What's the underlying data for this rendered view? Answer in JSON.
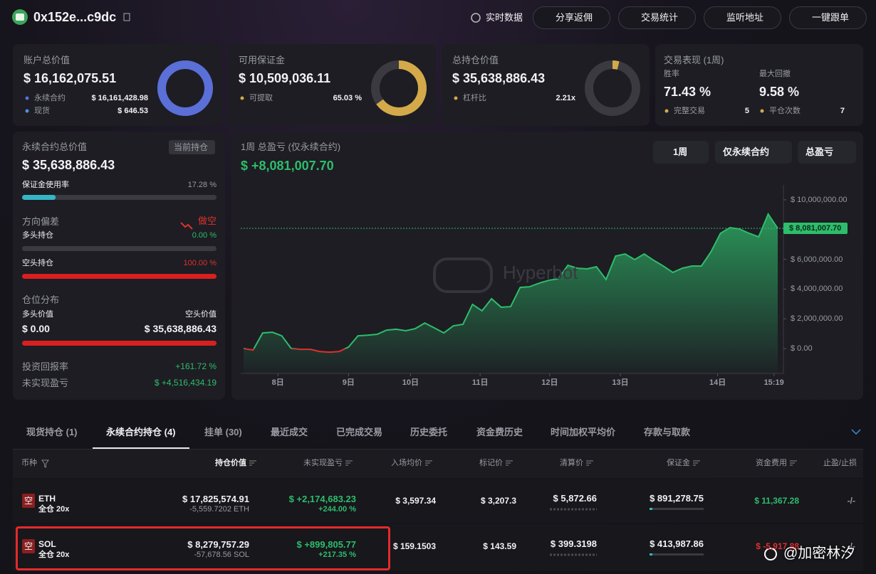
{
  "header": {
    "address": "0x152e...c9dc",
    "buttons": [
      "实时数据",
      "分享返佣",
      "交易统计",
      "监听地址",
      "一键跟单"
    ]
  },
  "cards": [
    {
      "title": "账户总价值",
      "value": "$ 16,162,075.51",
      "rows": [
        {
          "label": "永续合约",
          "value": 16161428.98,
          "value_label": "$ 16,161,428.98",
          "color": "#5b6fd8"
        },
        {
          "label": "现货",
          "value": 646.53,
          "value_label": "$ 646.53",
          "color": "#4d8fe0"
        }
      ]
    },
    {
      "title": "可用保证金",
      "value": "$ 10,509,036.11",
      "rows": [
        {
          "label": "可提取",
          "value": 65.03,
          "value_label": "65.03 %",
          "color": "#d4a94a"
        }
      ]
    },
    {
      "title": "总持仓价值",
      "value": "$ 35,638,886.43",
      "rows": [
        {
          "label": "杠杆比",
          "value": 2.21,
          "value_label": "2.21x",
          "color": "#d4a94a"
        }
      ],
      "donut_percent": 4
    }
  ],
  "performance": {
    "title": "交易表现 (1周)",
    "stats": [
      {
        "label": "胜率",
        "value": "71.43 %"
      },
      {
        "label": "最大回撤",
        "value": "9.58 %"
      }
    ],
    "counts": [
      {
        "label": "完整交易",
        "value": 5
      },
      {
        "label": "平仓次数",
        "value": 7
      }
    ]
  },
  "perp": {
    "title": "永续合约总价值",
    "badge": "当前持仓",
    "value": "$ 35,638,886.43",
    "margin_usage": {
      "label": "保证金使用率",
      "value": 17.28,
      "value_label": "17.28 %"
    },
    "direction": {
      "label": "方向偏差",
      "value": "做空",
      "long": {
        "label": "多头持仓",
        "value": 0,
        "value_label": "0.00 %"
      },
      "short": {
        "label": "空头持仓",
        "value": 100,
        "value_label": "100.00 %"
      }
    },
    "distribution": {
      "label": "仓位分布",
      "long": {
        "label": "多头价值",
        "value": 0,
        "value_label": "$ 0.00"
      },
      "short": {
        "label": "空头价值",
        "value": 35638886.43,
        "value_label": "$ 35,638,886.43"
      }
    },
    "roi": {
      "label": "投资回报率",
      "value": "+161.72 %"
    },
    "unrealized": {
      "label": "未实现盈亏",
      "value": "$ +4,516,434.19"
    }
  },
  "chart": {
    "type": "line",
    "title": "1周 总盈亏 (仅永续合约)",
    "value": "$ +8,081,007.70",
    "filters": [
      "1周",
      "仅永续合约",
      "总盈亏"
    ],
    "watermark": "Hyperbot",
    "x": [
      0,
      1,
      2,
      3,
      4,
      5,
      6,
      7,
      8,
      9,
      10,
      11,
      12,
      13,
      14,
      15,
      16,
      17,
      18,
      19,
      20,
      21,
      22,
      23,
      24,
      25,
      26,
      27,
      28,
      29,
      30,
      31,
      32,
      33,
      34,
      35,
      36,
      37,
      38,
      39,
      40,
      41,
      42,
      43,
      44,
      45,
      46,
      47,
      48,
      49,
      50,
      51,
      52,
      53,
      54,
      55,
      56
    ],
    "series": [
      {
        "color": "#2ebd6b",
        "negative_color": "#e0302f",
        "values": [
          0,
          -100000,
          1050000,
          1100000,
          860000,
          0,
          -50000,
          -50000,
          -200000,
          -240000,
          -200000,
          100000,
          860000,
          900000,
          960000,
          1240000,
          1300000,
          1200000,
          1340000,
          1720000,
          1390000,
          1050000,
          1530000,
          1630000,
          2970000,
          2540000,
          3350000,
          2780000,
          2820000,
          4110000,
          4160000,
          4400000,
          4590000,
          4690000,
          5600000,
          5400000,
          5360000,
          5500000,
          4640000,
          6220000,
          6360000,
          5980000,
          6360000,
          5930000,
          5550000,
          5120000,
          5400000,
          5550000,
          5550000,
          6500000,
          7750000,
          8130000,
          8040000,
          7750000,
          7510000,
          9040000,
          8080000
        ]
      }
    ],
    "xlim": [
      0,
      56
    ],
    "xticks": [
      {
        "value": 3.6,
        "label": "8日"
      },
      {
        "value": 11,
        "label": "9日"
      },
      {
        "value": 17.5,
        "label": "10日"
      },
      {
        "value": 24.8,
        "label": "11日"
      },
      {
        "value": 32.1,
        "label": "12日"
      },
      {
        "value": 39.5,
        "label": "13日"
      },
      {
        "value": 49.7,
        "label": "14日"
      },
      {
        "value": 55.6,
        "label": "15:19"
      }
    ],
    "ylim": [
      -1670000,
      11000000
    ],
    "yticks": [
      {
        "value": 0,
        "label": "$ 0.00"
      },
      {
        "value": 2000000,
        "label": "$ 2,000,000.00"
      },
      {
        "value": 4000000,
        "label": "$ 4,000,000.00"
      },
      {
        "value": 6000000,
        "label": "$ 6,000,000.00"
      },
      {
        "value": 10000000,
        "label": "$ 10,000,000.00"
      }
    ],
    "current": 8081007.7,
    "current_label": "$ 8,081,007.70"
  },
  "table": {
    "tabs": [
      "现货持仓 (1)",
      "永续合约持仓 (4)",
      "挂单 (30)",
      "最近成交",
      "已完成交易",
      "历史委托",
      "资金费历史",
      "时间加权平均价",
      "存款与取款"
    ],
    "active_tab": 1,
    "columns": [
      "币种",
      "持仓价值",
      "未实现盈亏",
      "入场均价",
      "标记价",
      "清算价",
      "保证金",
      "资金费用",
      "止盈/止损"
    ],
    "rows": [
      {
        "side": "空",
        "coin": "ETH",
        "mode": "全仓 20x",
        "value": "$ 17,825,574.91",
        "size": "-5,559.7202 ETH",
        "pnl": "$ +2,174,683.23",
        "pnl_pct": "+244.00 %",
        "entry": "$ 3,597.34",
        "mark": "$ 3,207.3",
        "liq": "$ 5,872.66",
        "margin": "$ 891,278.75",
        "funding": "$ 11,367.28",
        "tpsl": "-/-"
      },
      {
        "side": "空",
        "coin": "SOL",
        "mode": "全仓 20x",
        "value": "$ 8,279,757.29",
        "size": "-57,678.56 SOL",
        "pnl": "$ +899,805.77",
        "pnl_pct": "+217.35 %",
        "entry": "$ 159.1503",
        "mark": "$ 143.59",
        "liq": "$ 399.3198",
        "margin": "$ 413,987.86",
        "funding": "$ -5,917.88",
        "tpsl": "-/-"
      }
    ]
  },
  "footer_watermark": "@加密林汐"
}
